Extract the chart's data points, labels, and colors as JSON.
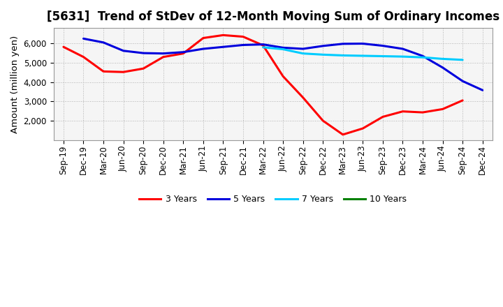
{
  "title": "[5631]  Trend of StDev of 12-Month Moving Sum of Ordinary Incomes",
  "ylabel": "Amount (million yen)",
  "x_labels": [
    "Sep-19",
    "Dec-19",
    "Mar-20",
    "Jun-20",
    "Sep-20",
    "Dec-20",
    "Mar-21",
    "Jun-21",
    "Sep-21",
    "Dec-21",
    "Mar-22",
    "Jun-22",
    "Sep-22",
    "Dec-22",
    "Mar-23",
    "Jun-23",
    "Sep-23",
    "Dec-23",
    "Mar-24",
    "Jun-24",
    "Sep-24",
    "Dec-24"
  ],
  "series": {
    "3 Years": {
      "color": "#ff0000",
      "data": [
        5820,
        5300,
        4550,
        4520,
        4700,
        5300,
        5480,
        6280,
        6430,
        6350,
        5900,
        4300,
        3200,
        2000,
        1280,
        1600,
        2200,
        2480,
        2430,
        2600,
        3050,
        null
      ]
    },
    "5 Years": {
      "color": "#0000dd",
      "data": [
        null,
        6250,
        6050,
        5620,
        5500,
        5480,
        5550,
        5720,
        5820,
        5920,
        5950,
        5780,
        5720,
        5870,
        5980,
        5990,
        5880,
        5720,
        5350,
        4750,
        4050,
        3580
      ]
    },
    "7 Years": {
      "color": "#00ccff",
      "data": [
        null,
        null,
        null,
        null,
        null,
        null,
        null,
        null,
        null,
        null,
        5800,
        5700,
        5480,
        5420,
        5380,
        5360,
        5340,
        5320,
        5280,
        5200,
        5150,
        null
      ]
    },
    "10 Years": {
      "color": "#008000",
      "data": [
        null,
        null,
        null,
        null,
        null,
        null,
        null,
        null,
        null,
        null,
        null,
        null,
        null,
        null,
        null,
        null,
        null,
        null,
        null,
        null,
        null,
        null
      ]
    }
  },
  "ylim": [
    1000,
    6800
  ],
  "ytick_positions": [
    2000,
    3000,
    4000,
    5000,
    6000
  ],
  "ytick_labels": [
    "2,000",
    "3,000",
    "4,000",
    "5,000",
    "6,000"
  ],
  "background_color": "#ffffff",
  "plot_bg_color": "#f5f5f5",
  "grid_color": "#aaaaaa",
  "title_fontsize": 12,
  "label_fontsize": 9.5,
  "tick_fontsize": 8.5,
  "legend_fontsize": 9
}
